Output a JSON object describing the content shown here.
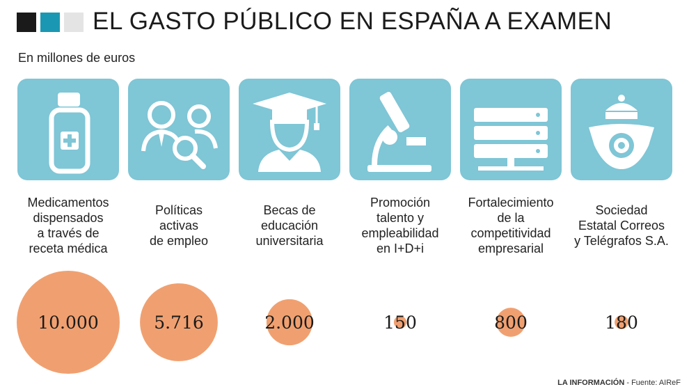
{
  "header": {
    "title": "EL GASTO PÚBLICO EN ESPAÑA A EXAMEN",
    "subtitle": "En millones de euros"
  },
  "colors": {
    "tile": "#7fc6d6",
    "bubble": "#f0a070",
    "square_dark": "#1a1a1a",
    "square_blue": "#1a98b3",
    "square_light": "#e4e4e4"
  },
  "items": [
    {
      "icon": "medicine-bottle-icon",
      "label_lines": [
        "Medicamentos",
        "dispensados",
        "a través de",
        "receta médica"
      ],
      "value_text": "10.000"
    },
    {
      "icon": "people-search-icon",
      "label_lines": [
        "Políticas",
        "activas",
        "de empleo"
      ],
      "value_text": "5.716"
    },
    {
      "icon": "graduate-icon",
      "label_lines": [
        "Becas de",
        "educación",
        "universitaria"
      ],
      "value_text": "2.000"
    },
    {
      "icon": "microscope-icon",
      "label_lines": [
        "Promoción",
        "talento y",
        "empleabilidad",
        "en I+D+i"
      ],
      "value_text": "150"
    },
    {
      "icon": "server-icon",
      "label_lines": [
        "Fortalecimiento",
        "de la",
        "competitividad",
        "empresarial"
      ],
      "value_text": "800"
    },
    {
      "icon": "correos-logo-icon",
      "label_lines": [
        "Sociedad",
        "Estatal Correos",
        "y Telégrafos S.A."
      ],
      "value_text": "180"
    }
  ],
  "chart_data": {
    "type": "bubble",
    "unit": "En millones de euros",
    "categories": [
      "Medicamentos dispensados a través de receta médica",
      "Políticas activas de empleo",
      "Becas de educación universitaria",
      "Promoción talento y empleabilidad en I+D+i",
      "Fortalecimiento de la competitividad empresarial",
      "Sociedad Estatal Correos y Telégrafos S.A."
    ],
    "values": [
      10000,
      5716,
      2000,
      150,
      800,
      180
    ]
  },
  "footer": {
    "brand": "LA INFORMACIÓN",
    "source": " - Fuente: AIReF"
  }
}
